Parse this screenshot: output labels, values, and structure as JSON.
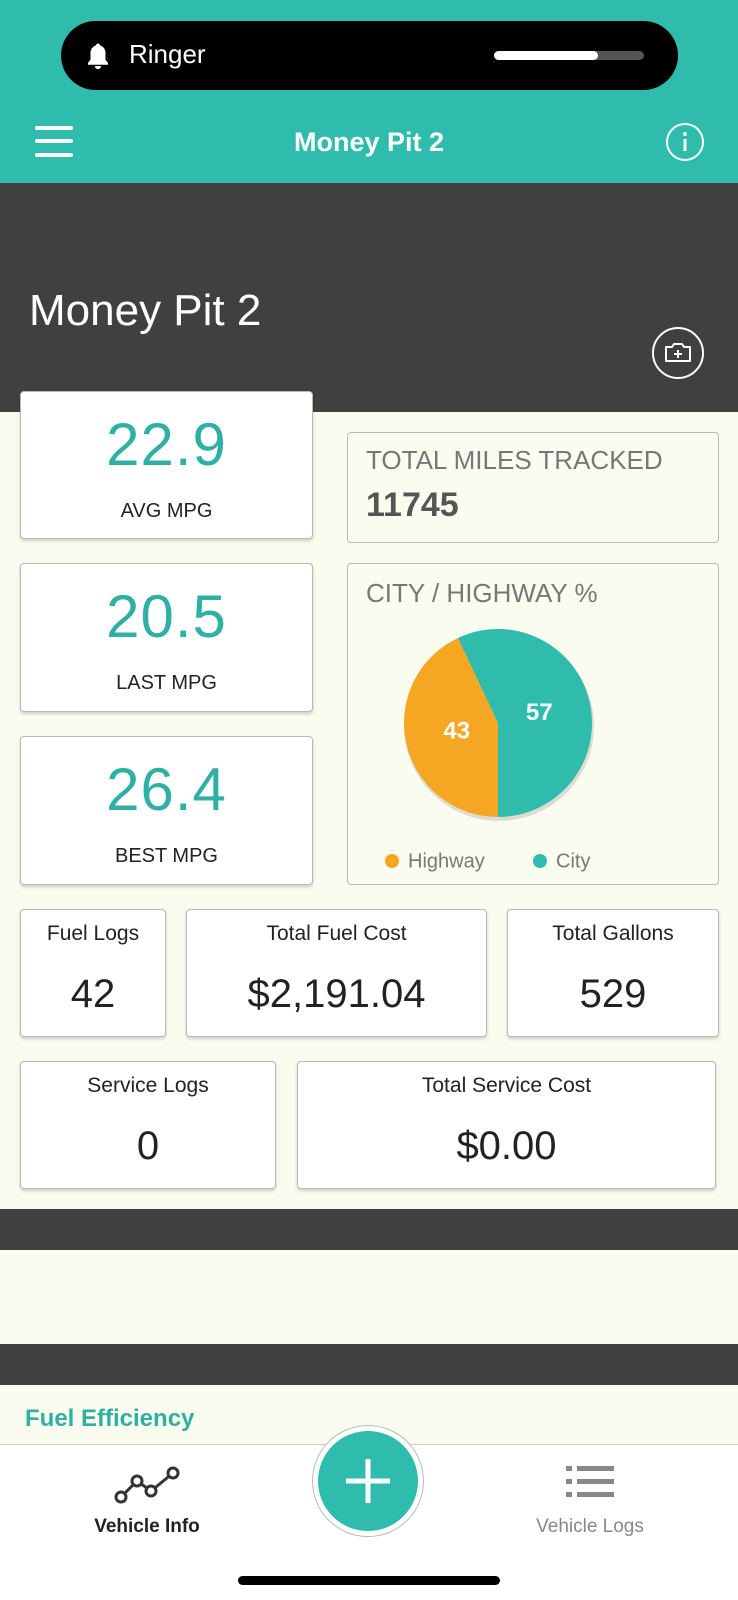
{
  "status_bar": {
    "label": "Ringer"
  },
  "header": {
    "title": "Money Pit 2"
  },
  "vehicle": {
    "name": "Money Pit 2"
  },
  "mpg_cards": [
    {
      "value": 22.9,
      "label": "AVG MPG"
    },
    {
      "value": 20.5,
      "label": "LAST MPG"
    },
    {
      "value": 26.4,
      "label": "BEST MPG"
    }
  ],
  "miles": {
    "label": "TOTAL MILES TRACKED",
    "value": 11745
  },
  "chart_data": {
    "type": "pie",
    "title": "CITY / HIGHWAY %",
    "categories": [
      "Highway",
      "City"
    ],
    "values": [
      43,
      57
    ],
    "colors": [
      "#f5a623",
      "#2fbcad"
    ],
    "legend": "bottom"
  },
  "summary_cards": [
    {
      "label": "Fuel Logs",
      "value": 42
    },
    {
      "label": "Total Fuel Cost",
      "value": "$2,191.04"
    },
    {
      "label": "Total Gallons",
      "value": 529
    },
    {
      "label": "Service Logs",
      "value": 0
    },
    {
      "label": "Total Service Cost",
      "value": "$0.00"
    }
  ],
  "section": {
    "title": "Fuel Efficiency"
  },
  "nav": {
    "items": [
      {
        "label": "Vehicle Info"
      },
      {
        "label": "Vehicle Logs"
      }
    ]
  }
}
